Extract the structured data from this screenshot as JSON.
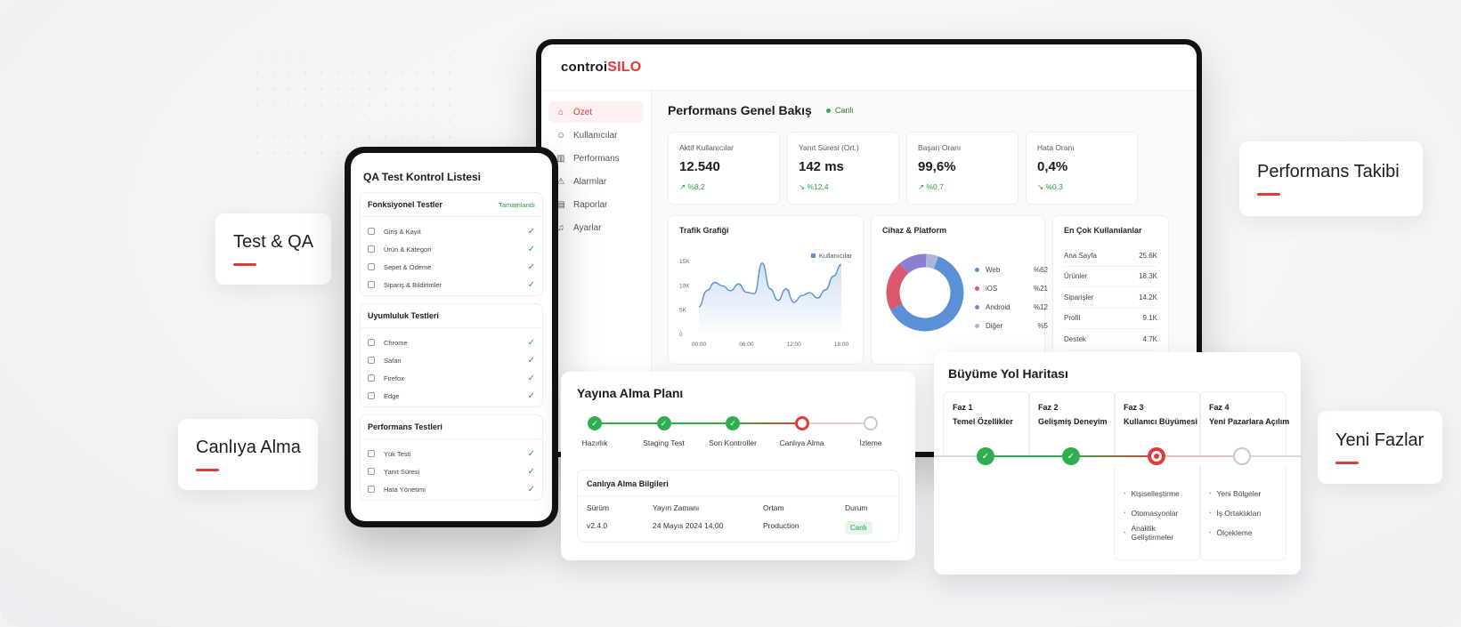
{
  "labels": {
    "test_qa": "Test & QA",
    "canliya_alma": "Canlıya Alma",
    "performans_takibi": "Performans Takibi",
    "yeni_fazlar": "Yeni Fazlar"
  },
  "colors": {
    "accent": "#e53935",
    "success": "#2eae4f",
    "web": "#5b8fd6",
    "ios": "#d9596f",
    "android": "#8b7fd1",
    "other": "#a9b8d8"
  },
  "dashboard": {
    "logo_part1": "controi",
    "logo_part2": "SILO",
    "sidebar": [
      {
        "label": "Özet",
        "icon": "home-icon",
        "glyph": "⌂",
        "active": true
      },
      {
        "label": "Kullanıcılar",
        "icon": "user-icon",
        "glyph": "☺",
        "active": false
      },
      {
        "label": "Performans",
        "icon": "bar-chart-icon",
        "glyph": "▥",
        "active": false
      },
      {
        "label": "Alarmlar",
        "icon": "alert-icon",
        "glyph": "⚠",
        "active": false
      },
      {
        "label": "Raporlar",
        "icon": "report-icon",
        "glyph": "▤",
        "active": false
      },
      {
        "label": "Ayarlar",
        "icon": "bell-icon",
        "glyph": "♫",
        "active": false
      }
    ],
    "title": "Performans Genel Bakış",
    "live_label": "Canlı",
    "kpis": [
      {
        "label": "Aktif Kullanıcılar",
        "value": "12.540",
        "delta": "↗ %8,2"
      },
      {
        "label": "Yanıt Süresi (Ort.)",
        "value": "142 ms",
        "delta": "↘ %12,4"
      },
      {
        "label": "Başarı Oranı",
        "value": "99,6%",
        "delta": "↗ %0,7"
      },
      {
        "label": "Hata Oranı",
        "value": "0,4%",
        "delta": "↘ %0,3"
      }
    ],
    "traffic": {
      "title": "Trafik Grafiği",
      "legend": "Kullanıcılar"
    },
    "device": {
      "title": "Cihaz & Platform",
      "rows": [
        {
          "name": "Web",
          "value": "%62",
          "color": "#5b8fd6"
        },
        {
          "name": "iOS",
          "value": "%21",
          "color": "#d9596f"
        },
        {
          "name": "Android",
          "value": "%12",
          "color": "#8b7fd1"
        },
        {
          "name": "Diğer",
          "value": "%5",
          "color": "#a9b8d8"
        }
      ]
    },
    "top_users": {
      "title": "En Çok Kullanılanlar",
      "rows": [
        {
          "name": "Ana Sayfa",
          "value": "25.6K"
        },
        {
          "name": "Ürünler",
          "value": "18.3K"
        },
        {
          "name": "Siparişler",
          "value": "14.2K"
        },
        {
          "name": "Profil",
          "value": "9.1K"
        },
        {
          "name": "Destek",
          "value": "4.7K"
        }
      ]
    }
  },
  "chart_data": {
    "type": "area",
    "title": "Trafik Grafiği",
    "x": [
      "00:00",
      "01:00",
      "02:00",
      "03:00",
      "04:00",
      "05:00",
      "06:00",
      "07:00",
      "08:00",
      "09:00",
      "10:00",
      "11:00",
      "12:00",
      "13:00",
      "14:00",
      "15:00",
      "16:00",
      "17:00",
      "18:00"
    ],
    "xticks": [
      "00:00",
      "06:00",
      "12:00",
      "18:00"
    ],
    "yticks": [
      "0",
      "5K",
      "10K",
      "15K"
    ],
    "ylim": [
      0,
      15000
    ],
    "series": [
      {
        "name": "Kullanıcılar",
        "values": [
          5500,
          8800,
          10500,
          9800,
          8800,
          10200,
          8500,
          8200,
          14500,
          9200,
          6800,
          9200,
          6400,
          7800,
          8400,
          7300,
          9000,
          11800,
          14200
        ]
      }
    ]
  },
  "pie": {
    "values": [
      62,
      21,
      12,
      5
    ]
  },
  "phone": {
    "title": "QA Test Kontrol Listesi",
    "sections": [
      {
        "title": "Fonksiyonel Testler",
        "status": "Tamamlandı",
        "items": [
          "Giriş & Kayıt",
          "Ürün & Kategori",
          "Sepet & Ödeme",
          "Sipariş & Bildirimler"
        ]
      },
      {
        "title": "Uyumluluk Testleri",
        "status": "",
        "items": [
          "Chrome",
          "Safari",
          "Firefox",
          "Edge"
        ]
      },
      {
        "title": "Performans Testleri",
        "status": "",
        "items": [
          "Yük Testi",
          "Yanıt Süresi",
          "Hata Yönetimi"
        ]
      }
    ]
  },
  "deploy": {
    "title": "Yayına Alma Planı",
    "steps": [
      {
        "label": "Hazırlık",
        "state": "done"
      },
      {
        "label": "Staging Test",
        "state": "done"
      },
      {
        "label": "Son Kontroller",
        "state": "done"
      },
      {
        "label": "Canlıya Alma",
        "state": "active"
      },
      {
        "label": "İzleme",
        "state": "todo"
      }
    ],
    "info_title": "Canlıya Alma Bilgileri",
    "headers": [
      "Sürüm",
      "Yayın Zamanı",
      "Ortam",
      "Durum"
    ],
    "values": [
      "v2.4.0",
      "24 Mayıs 2024 14:00",
      "Production",
      "Canlı"
    ]
  },
  "roadmap": {
    "title": "Büyüme Yol Haritası",
    "phases": [
      {
        "name": "Faz 1",
        "title": "Temel Özellikler",
        "state": "done",
        "items": []
      },
      {
        "name": "Faz 2",
        "title": "Gelişmiş Deneyim",
        "state": "done",
        "items": []
      },
      {
        "name": "Faz 3",
        "title": "Kullanıcı Büyümesi",
        "state": "active",
        "items": [
          "Kişiselleştirme",
          "Otomasyonlar",
          "Analitik Geliştirmeler"
        ]
      },
      {
        "name": "Faz 4",
        "title": "Yeni Pazarlara Açılım",
        "state": "todo",
        "items": [
          "Yeni Bölgeler",
          "İş Ortaklıkları",
          "Ölçekleme"
        ]
      }
    ]
  }
}
